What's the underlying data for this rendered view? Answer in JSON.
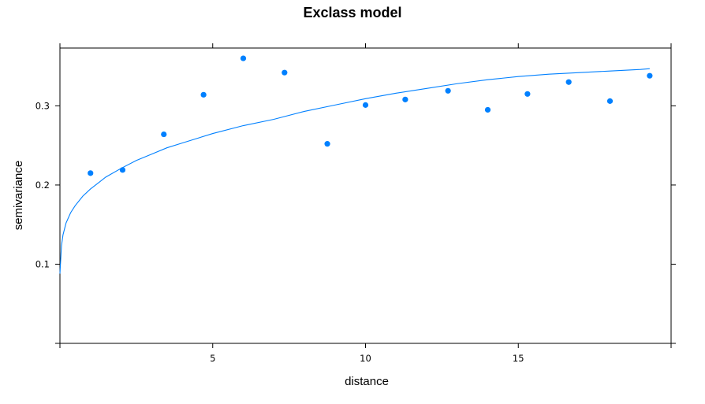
{
  "chart_data": {
    "type": "scatter",
    "title": "Exclass model",
    "xlabel": "distance",
    "ylabel": "semivariance",
    "xlim": [
      0,
      20
    ],
    "ylim": [
      0,
      0.373
    ],
    "xticks": [
      5,
      10,
      15
    ],
    "xtick_labels": [
      "5",
      "10",
      "15"
    ],
    "yticks": [
      0.1,
      0.2,
      0.3
    ],
    "ytick_labels": [
      "0.1",
      "0.2",
      "0.3"
    ],
    "grid": false,
    "points_color": "#0080ff",
    "line_color": "#0080ff",
    "series": [
      {
        "type": "scatter",
        "x": [
          1.0,
          2.05,
          3.4,
          4.7,
          6.0,
          7.35,
          8.75,
          10.0,
          11.3,
          12.7,
          14.0,
          15.3,
          16.65,
          18.0,
          19.3
        ],
        "y": [
          0.215,
          0.219,
          0.264,
          0.314,
          0.36,
          0.342,
          0.252,
          0.301,
          0.308,
          0.319,
          0.295,
          0.315,
          0.33,
          0.306,
          0.338
        ]
      },
      {
        "type": "line",
        "x": [
          0.0,
          0.05,
          0.1,
          0.2,
          0.35,
          0.5,
          0.75,
          1.0,
          1.5,
          2.0,
          2.5,
          3.0,
          3.5,
          4.0,
          5.0,
          6.0,
          7.0,
          8.0,
          9.0,
          10.0,
          11.0,
          12.0,
          13.0,
          14.0,
          15.0,
          16.0,
          17.0,
          18.0,
          19.0,
          19.3
        ],
        "y": [
          0.088,
          0.123,
          0.137,
          0.152,
          0.165,
          0.174,
          0.186,
          0.195,
          0.21,
          0.221,
          0.231,
          0.239,
          0.247,
          0.253,
          0.265,
          0.275,
          0.283,
          0.293,
          0.301,
          0.309,
          0.316,
          0.322,
          0.328,
          0.333,
          0.337,
          0.34,
          0.342,
          0.344,
          0.346,
          0.347
        ]
      }
    ]
  }
}
